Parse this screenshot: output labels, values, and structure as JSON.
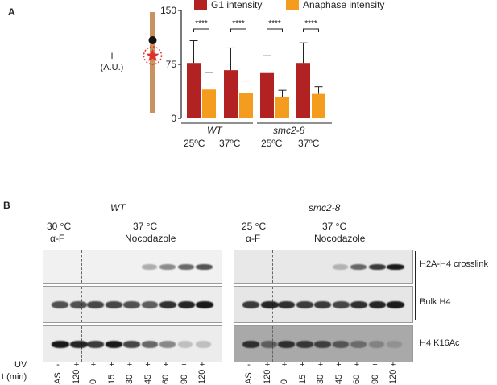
{
  "panel_a": {
    "letter": "A",
    "cartoon": {
      "y_label_line1": "I",
      "y_label_line2": "(A.U.)"
    },
    "legend": [
      {
        "label": "G1 intensity",
        "color": "#b22222"
      },
      {
        "label": "Anaphase intensity",
        "color": "#f39c1e"
      }
    ],
    "significance": [
      "****",
      "****",
      "****",
      "****"
    ],
    "group_labels": [
      {
        "label": "WT",
        "italic": true
      },
      {
        "label": "smc2-8",
        "italic": true
      }
    ],
    "temperature_labels": [
      "25ºC",
      "37ºC",
      "25ºC",
      "37ºC"
    ]
  },
  "chart_data": {
    "type": "bar",
    "categories": [
      "WT 25ºC",
      "WT 37ºC",
      "smc2-8 25ºC",
      "smc2-8 37ºC"
    ],
    "series": [
      {
        "name": "G1 intensity",
        "values": [
          77,
          67,
          63,
          77
        ],
        "error": [
          31,
          31,
          24,
          28
        ]
      },
      {
        "name": "Anaphase intensity",
        "values": [
          40,
          35,
          30,
          34
        ],
        "error": [
          24,
          17,
          9,
          10
        ]
      }
    ],
    "yticks": [
      "0",
      "75",
      "150"
    ],
    "ylim": [
      0,
      150
    ],
    "xlabel": "",
    "ylabel": "I (A.U.)",
    "title": ""
  },
  "panel_b": {
    "letter": "B",
    "wt": {
      "title": "WT",
      "cond1_temp": "30 °C",
      "cond1_drug": "α-F",
      "cond2_temp": "37 °C",
      "cond2_drug": "Nocodazole"
    },
    "smc": {
      "title": "smc2-8",
      "cond1_temp": "25 °C",
      "cond1_drug": "α-F",
      "cond2_temp": "37 °C",
      "cond2_drug": "Nocodazole"
    },
    "row_labels": [
      "H2A-H4 crosslink",
      "Bulk H4",
      "H4 K16Ac"
    ],
    "uv_label": "UV",
    "time_label": "t (min)",
    "uv_values": [
      "-",
      "+",
      "+",
      "+",
      "+",
      "+",
      "+",
      "+",
      "+"
    ],
    "time_values": [
      "AS",
      "120",
      "0",
      "15",
      "30",
      "45",
      "60",
      "90",
      "120"
    ],
    "crosslink_wt": [
      0,
      0,
      0,
      0,
      0,
      0.3,
      0.45,
      0.6,
      0.7
    ],
    "crosslink_smc": [
      0,
      0,
      0,
      0,
      0,
      0.25,
      0.6,
      0.8,
      0.95
    ],
    "bulk_wt": [
      0.7,
      0.7,
      0.75,
      0.75,
      0.7,
      0.65,
      0.85,
      0.9,
      0.95
    ],
    "bulk_smc": [
      0.8,
      0.9,
      0.85,
      0.8,
      0.8,
      0.75,
      0.85,
      0.9,
      0.95
    ],
    "k16_wt": [
      0.95,
      0.9,
      0.8,
      0.95,
      0.75,
      0.6,
      0.45,
      0.2,
      0.2
    ],
    "k16_smc": [
      0.8,
      0.5,
      0.8,
      0.75,
      0.7,
      0.55,
      0.4,
      0.25,
      0.15
    ]
  }
}
